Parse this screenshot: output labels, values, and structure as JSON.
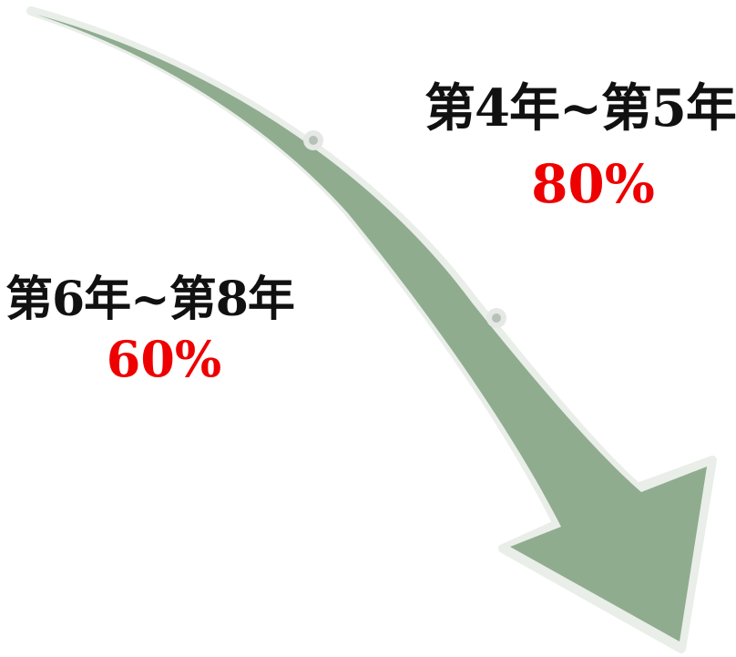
{
  "diagram": {
    "arrow_color": "#8fac8f",
    "arrow_outline_color": "#e9eee9",
    "marker_color": "#cfd6cf",
    "stages": [
      {
        "period": "第6年~第8年",
        "percentage": "60%"
      },
      {
        "period": "第4年~第5年",
        "percentage": "80%"
      }
    ],
    "percentage_color": "#ee0000",
    "period_color": "#111111"
  }
}
